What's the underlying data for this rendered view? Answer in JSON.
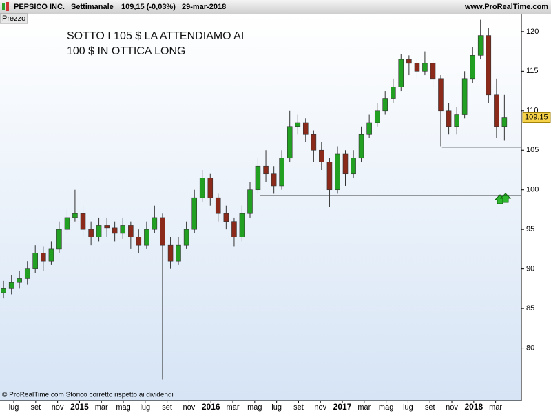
{
  "header": {
    "symbol": "PEPSICO INC.",
    "period": "Settimanale",
    "quote": "109,15 (-0,03%)",
    "date": "29-mar-2018",
    "site": "www.ProRealTime.com"
  },
  "panel_label": "Prezzo",
  "footer": "© ProRealTime.com  Storico corretto rispetto ai dividendi",
  "chart_data": {
    "type": "candlestick",
    "annotation": [
      "SOTTO I 105 $ LA ATTENDIAMO AI",
      "100 $ IN OTTICA LONG"
    ],
    "x": [
      -0.94,
      -0.21,
      0.51,
      1.24,
      1.96,
      2.69,
      3.42,
      4.14,
      4.87,
      5.59,
      6.32,
      7.05,
      7.77,
      8.5,
      9.22,
      9.95,
      10.68,
      11.4,
      12.13,
      12.85,
      13.58,
      14.31,
      15.03,
      15.76,
      16.49,
      17.21,
      17.94,
      18.66,
      19.39,
      20.12,
      20.84,
      21.57,
      22.29,
      23.02,
      23.75,
      24.47,
      25.2,
      25.93,
      26.65,
      27.38,
      28.1,
      28.83,
      29.56,
      30.28,
      31.01,
      31.73,
      32.46,
      33.19,
      33.91,
      34.64,
      35.36,
      36.09,
      36.82,
      37.54,
      38.27,
      38.99,
      39.72,
      40.45,
      41.17,
      41.9,
      42.62,
      43.35,
      44.08,
      44.8
    ],
    "open": [
      87,
      87.5,
      88.3,
      88.8,
      90,
      92,
      91,
      92.5,
      95,
      96.5,
      97,
      95,
      94,
      95.5,
      95.2,
      94.5,
      95.5,
      94,
      93,
      95,
      96.5,
      93,
      91,
      93,
      95,
      99,
      101.5,
      99,
      97,
      96,
      94,
      97,
      100,
      103,
      102,
      100.5,
      104,
      108,
      108.5,
      107,
      105,
      103.5,
      100,
      104.5,
      102,
      104,
      107,
      108.5,
      110,
      111.5,
      113,
      116.5,
      116,
      115,
      116,
      114,
      110,
      108,
      109.5,
      114,
      117,
      119.5,
      112,
      108
    ],
    "high": [
      88.5,
      89.2,
      89.8,
      91,
      93,
      92.8,
      93.5,
      96,
      97.5,
      100,
      98,
      96,
      96.5,
      96.5,
      96,
      96.5,
      96,
      95,
      96,
      98,
      97,
      94,
      94,
      96,
      100,
      102.5,
      102,
      99.5,
      98,
      96.5,
      98,
      101,
      104,
      105,
      103,
      105,
      110,
      109.5,
      109,
      107.5,
      106,
      104,
      105.5,
      105,
      105,
      108,
      109.5,
      111,
      112.5,
      114,
      117.2,
      117,
      116.5,
      117.5,
      116.5,
      114.5,
      111,
      110.5,
      115,
      118,
      121.5,
      120.5,
      114,
      112
    ],
    "low": [
      86.3,
      86.8,
      87.5,
      88,
      89.5,
      89.8,
      90.5,
      92,
      94.5,
      96,
      94,
      93,
      93.5,
      94,
      93.5,
      93.8,
      92.5,
      92,
      92.5,
      94.5,
      76,
      90,
      90.5,
      92.5,
      94.5,
      98.5,
      98,
      96,
      95,
      92.8,
      93.5,
      96.5,
      99.5,
      101,
      99.5,
      100,
      103.5,
      107,
      106,
      103.5,
      102.5,
      97.8,
      99.5,
      100.5,
      101.5,
      103.5,
      106.5,
      108,
      109.5,
      111,
      112.5,
      114.5,
      114,
      114.5,
      113,
      105.5,
      107,
      107,
      109,
      113.5,
      116.5,
      111,
      106.5,
      106.2
    ],
    "close": [
      87.5,
      88.3,
      88.8,
      90,
      92,
      91,
      92.5,
      95,
      96.5,
      97,
      95,
      94,
      95.5,
      95.2,
      94.5,
      95.5,
      94,
      93,
      95,
      96.5,
      93,
      91,
      93,
      95,
      99,
      101.5,
      99,
      97,
      96,
      94,
      97,
      100,
      103,
      102,
      100.5,
      104,
      108,
      108.5,
      107,
      105,
      103.5,
      100,
      104.5,
      102,
      104,
      107,
      108.5,
      110,
      111.5,
      113,
      116.5,
      116,
      115,
      116,
      114,
      110,
      108,
      109.5,
      114,
      117,
      119.5,
      112,
      108,
      109.15
    ],
    "up_color": "#22a022",
    "down_color": "#8b2a1a",
    "xlim": [
      -1.26,
      46.35
    ],
    "ylim": [
      73.35,
      122.25
    ],
    "xticks": [
      {
        "value": 0,
        "label": "lug"
      },
      {
        "value": 2,
        "label": "set"
      },
      {
        "value": 4,
        "label": "nov"
      },
      {
        "value": 6,
        "label": "2015"
      },
      {
        "value": 8,
        "label": "mar"
      },
      {
        "value": 10,
        "label": "mag"
      },
      {
        "value": 12,
        "label": "lug"
      },
      {
        "value": 14,
        "label": "set"
      },
      {
        "value": 16,
        "label": "nov"
      },
      {
        "value": 18,
        "label": "2016"
      },
      {
        "value": 20,
        "label": "mar"
      },
      {
        "value": 22,
        "label": "mag"
      },
      {
        "value": 24,
        "label": "lug"
      },
      {
        "value": 26,
        "label": "set"
      },
      {
        "value": 28,
        "label": "nov"
      },
      {
        "value": 30,
        "label": "2017"
      },
      {
        "value": 32,
        "label": "mar"
      },
      {
        "value": 34,
        "label": "mag"
      },
      {
        "value": 36,
        "label": "lug"
      },
      {
        "value": 38,
        "label": "set"
      },
      {
        "value": 40,
        "label": "nov"
      },
      {
        "value": 42,
        "label": "2018"
      },
      {
        "value": 44,
        "label": "mar"
      }
    ],
    "yticks": [
      80,
      85,
      90,
      95,
      100,
      105,
      110,
      115,
      120
    ],
    "last_price": {
      "value": 109.15,
      "label": "109,15"
    },
    "levels": [
      {
        "value": 105.4,
        "x": [
          39.1,
          46.35
        ]
      },
      {
        "value": 99.3,
        "x": [
          22.5,
          46.35
        ]
      }
    ]
  }
}
